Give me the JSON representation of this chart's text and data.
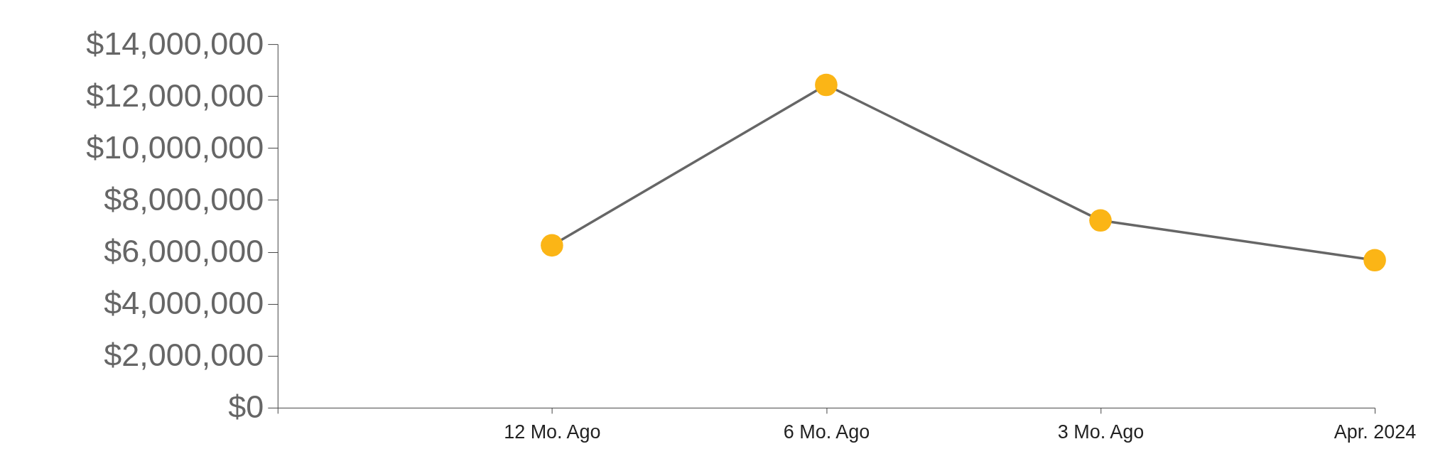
{
  "chart_data": {
    "type": "line",
    "categories": [
      null,
      "12 Mo. Ago",
      "6 Mo. Ago",
      "3 Mo. Ago",
      "Apr. 2024"
    ],
    "series": [
      {
        "color": "#666666",
        "colors": [
          null,
          "#fbb516",
          "#fbb516",
          "#fbb516",
          "#fbb516"
        ],
        "values": [
          null,
          6250000,
          12430000,
          7210000,
          5680000
        ]
      }
    ],
    "marker": "circle",
    "ylim": [
      0,
      14000000
    ],
    "yticks": [
      {
        "value": 0,
        "label": "$0"
      },
      {
        "value": 2000000,
        "label": "$2,000,000"
      },
      {
        "value": 4000000,
        "label": "$4,000,000"
      },
      {
        "value": 6000000,
        "label": "$6,000,000"
      },
      {
        "value": 8000000,
        "label": "$8,000,000"
      },
      {
        "value": 10000000,
        "label": "$10,000,000"
      },
      {
        "value": 12000000,
        "label": "$12,000,000"
      },
      {
        "value": 14000000,
        "label": "$14,000,000"
      }
    ],
    "grid": false
  }
}
